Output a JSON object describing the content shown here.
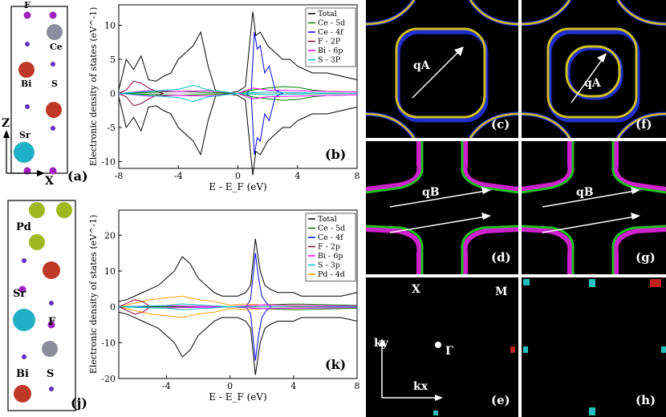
{
  "figure": {
    "structure_top": {
      "panel_label": "(a)",
      "atom_labels": [
        "F",
        "Ce",
        "Bi",
        "S",
        "Sr"
      ],
      "axis_z": "Z",
      "axis_x": "X"
    },
    "structure_bottom": {
      "panel_label": "(j)",
      "atom_labels": [
        "Pd",
        "Sr",
        "F",
        "Bi",
        "S"
      ]
    },
    "fermi_panels": {
      "c": {
        "label": "(c)",
        "q": "qA"
      },
      "f": {
        "label": "(f)",
        "q": "qA"
      },
      "d": {
        "label": "(d)",
        "q": "qB"
      },
      "g": {
        "label": "(g)",
        "q": "qB"
      },
      "e": {
        "label": "(e)",
        "X": "X",
        "M": "M",
        "Gamma": "Γ",
        "ky": "ky",
        "kx": "kx"
      },
      "h": {
        "label": "(h)"
      }
    },
    "colors": {
      "total": "#000000",
      "ce5d": "#008000",
      "ce4f": "#0000ff",
      "f2p": "#8b0038",
      "bi6p": "#ff00ff",
      "s3p": "#00c0c0",
      "pd4d": "#ff9900",
      "fermi_yellow": "#d0c020",
      "fermi_blue": "#2030d0",
      "fermi_green": "#20c020",
      "fermi_magenta": "#d020d0"
    }
  },
  "chart_data": [
    {
      "type": "line",
      "panel_label": "(b)",
      "xlabel": "E - E_F (eV)",
      "ylabel": "Electronic density of states (eV^-1)",
      "xlim": [
        -8,
        8
      ],
      "ylim": [
        -11,
        13
      ],
      "xticks": [
        "-8",
        "-4",
        "0",
        "4",
        "8"
      ],
      "yticks": [
        "-10",
        "-5",
        "0",
        "5",
        "10"
      ],
      "legend": [
        "Total",
        "Ce - 5d",
        "Ce - 4f",
        "F - 2P",
        "Bi - 6p",
        "S - 3P"
      ],
      "series": [
        {
          "name": "Total",
          "x": [
            -8,
            -7.5,
            -7,
            -6.5,
            -6,
            -5.5,
            -5,
            -4.5,
            -4,
            -3.5,
            -3,
            -2.5,
            -2,
            -1.5,
            -1,
            -0.5,
            0,
            0.5,
            1,
            1.2,
            1.5,
            2,
            2.5,
            3,
            3.5,
            4,
            4.5,
            5,
            6,
            7,
            8
          ],
          "y": [
            0.5,
            5,
            3.5,
            5.5,
            2,
            1.8,
            2.5,
            3,
            5,
            6,
            7,
            9,
            4,
            0.4,
            0.2,
            0.1,
            0.3,
            1,
            12,
            8.5,
            9,
            7,
            6,
            5,
            5,
            4,
            3.5,
            3,
            3,
            2.5,
            2
          ]
        },
        {
          "name": "Ce - 4f",
          "x": [
            0.5,
            0.9,
            1.1,
            1.3,
            1.5,
            1.8,
            2.1,
            2.5,
            3
          ],
          "y": [
            0,
            0.5,
            9,
            6.5,
            7,
            3,
            4,
            0.5,
            0
          ]
        },
        {
          "name": "F - 2P",
          "x": [
            -8,
            -7.5,
            -7,
            -6.5,
            -6,
            -5.5,
            -5
          ],
          "y": [
            0,
            0.5,
            1.8,
            1.5,
            0.8,
            0.3,
            0
          ]
        },
        {
          "name": "Ce - 5d",
          "x": [
            -8,
            -4,
            0,
            1,
            2,
            3,
            4,
            5,
            6,
            8
          ],
          "y": [
            0,
            0.3,
            0,
            0.5,
            0.8,
            1,
            0.9,
            0.5,
            0.3,
            0.2
          ]
        },
        {
          "name": "Bi - 6p",
          "x": [
            -8,
            -6,
            -4,
            -2,
            0,
            1,
            2,
            4,
            8
          ],
          "y": [
            0,
            0.4,
            0.3,
            0.4,
            0,
            0.8,
            0.5,
            0.4,
            0.2
          ]
        },
        {
          "name": "S - 3P",
          "x": [
            -8,
            -6,
            -4,
            -3,
            -2,
            0,
            2,
            4,
            8
          ],
          "y": [
            0,
            0.3,
            0.6,
            1.2,
            0.5,
            0,
            0.2,
            0.1,
            0
          ]
        }
      ]
    },
    {
      "type": "line",
      "panel_label": "(k)",
      "xlabel": "E - E_F (eV)",
      "ylabel": "Electronic density of states (eV^-1)",
      "xlim": [
        -7,
        8
      ],
      "ylim": [
        -20,
        27
      ],
      "xticks": [
        "-4",
        "0",
        "4",
        "8"
      ],
      "yticks": [
        "-20",
        "-10",
        "0",
        "10",
        "20"
      ],
      "legend": [
        "Total",
        "Ce - 5d",
        "Ce - 4f",
        "F - 2p",
        "Bi - 6p",
        "S - 3p",
        "Pd - 4d"
      ],
      "series": [
        {
          "name": "Total",
          "x": [
            -7,
            -6.5,
            -6,
            -5.5,
            -5,
            -4.5,
            -4,
            -3.5,
            -3,
            -2.5,
            -2,
            -1.5,
            -1,
            -0.5,
            0,
            0.5,
            1,
            1.3,
            1.6,
            1.9,
            2.2,
            2.5,
            3,
            3.5,
            4,
            4.5,
            5,
            6,
            7,
            8
          ],
          "y": [
            1.5,
            2,
            3,
            4,
            5,
            6,
            8,
            10,
            14,
            12,
            8,
            6,
            4,
            3,
            3,
            3,
            4,
            6,
            19,
            10,
            6,
            5,
            4,
            4,
            4,
            3,
            3,
            3,
            3,
            4
          ]
        },
        {
          "name": "Ce - 4f",
          "x": [
            1,
            1.3,
            1.6,
            1.8,
            2,
            2.3,
            2.6
          ],
          "y": [
            0,
            2,
            15,
            8,
            3,
            1,
            0
          ]
        },
        {
          "name": "Pd - 4d",
          "x": [
            -7,
            -6,
            -5,
            -4,
            -3,
            -2,
            -1,
            0,
            1,
            2,
            4,
            8
          ],
          "y": [
            0,
            1,
            2,
            2.5,
            3,
            2,
            1.5,
            0.5,
            0.8,
            0.5,
            0.3,
            0.2
          ]
        },
        {
          "name": "F - 2p",
          "x": [
            -7,
            -6.5,
            -6,
            -5.5,
            -5
          ],
          "y": [
            0,
            1,
            2,
            1.5,
            0
          ]
        },
        {
          "name": "Ce - 5d",
          "x": [
            -7,
            0,
            2,
            4,
            8
          ],
          "y": [
            0,
            0,
            0.5,
            0.8,
            0.4
          ]
        },
        {
          "name": "Bi - 6p",
          "x": [
            -7,
            -4,
            0,
            2,
            8
          ],
          "y": [
            0,
            0.3,
            0,
            0.5,
            0.2
          ]
        },
        {
          "name": "S - 3p",
          "x": [
            -7,
            -4,
            -3,
            0,
            8
          ],
          "y": [
            0,
            0.4,
            0.8,
            0,
            0
          ]
        }
      ]
    }
  ]
}
